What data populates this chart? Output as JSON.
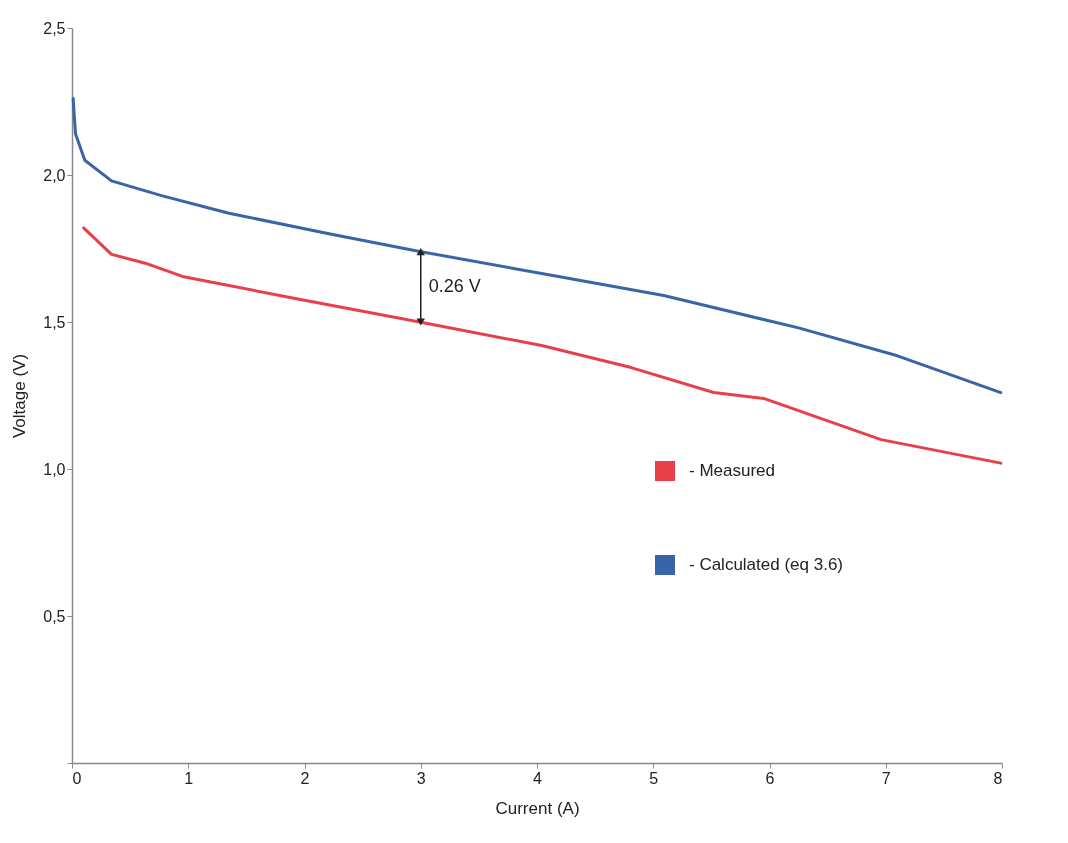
{
  "chart_data": {
    "type": "line",
    "xlabel": "Current (A)",
    "ylabel": "Voltage (V)",
    "xlim": [
      0,
      8
    ],
    "xticks": [
      0,
      1,
      2,
      3,
      4,
      5,
      6,
      7,
      8
    ],
    "ylim": [
      0,
      2.5
    ],
    "yticks": [
      {
        "value": 0,
        "label": null
      },
      {
        "value": 0.5,
        "label": "0,5"
      },
      {
        "value": 1,
        "label": "1,0"
      },
      {
        "value": 1.5,
        "label": "1,5"
      },
      {
        "value": 2,
        "label": "2,0"
      },
      {
        "value": 2.5,
        "label": "2,5"
      }
    ],
    "grid": false,
    "legend": "bottom right",
    "marker": "none",
    "line_style": "solid",
    "annotations": [
      {
        "text": "0.26 V",
        "x": 3,
        "y": 1.5
      }
    ],
    "series": [
      {
        "name": "- Measured",
        "color": "#e8404a",
        "x": [
          0.1,
          0.34,
          0.63,
          0.95,
          1.92,
          2.99,
          4.04,
          4.81,
          5.52,
          5.95,
          6.96,
          7.99
        ],
        "values": [
          1.82,
          1.73,
          1.7,
          1.655,
          1.58,
          1.5,
          1.42,
          1.345,
          1.26,
          1.24,
          1.1,
          1.02
        ]
      },
      {
        "name": "- Calculated (eq 3.6)",
        "color": "#3a64a8",
        "x": [
          0.01,
          0.03,
          0.11,
          0.34,
          0.77,
          1.35,
          2.21,
          2.99,
          4.04,
          5.09,
          6.25,
          7.1,
          7.99
        ],
        "values": [
          2.26,
          2.14,
          2.05,
          1.98,
          1.93,
          1.87,
          1.8,
          1.74,
          1.665,
          1.59,
          1.48,
          1.385,
          1.26
        ]
      }
    ]
  }
}
